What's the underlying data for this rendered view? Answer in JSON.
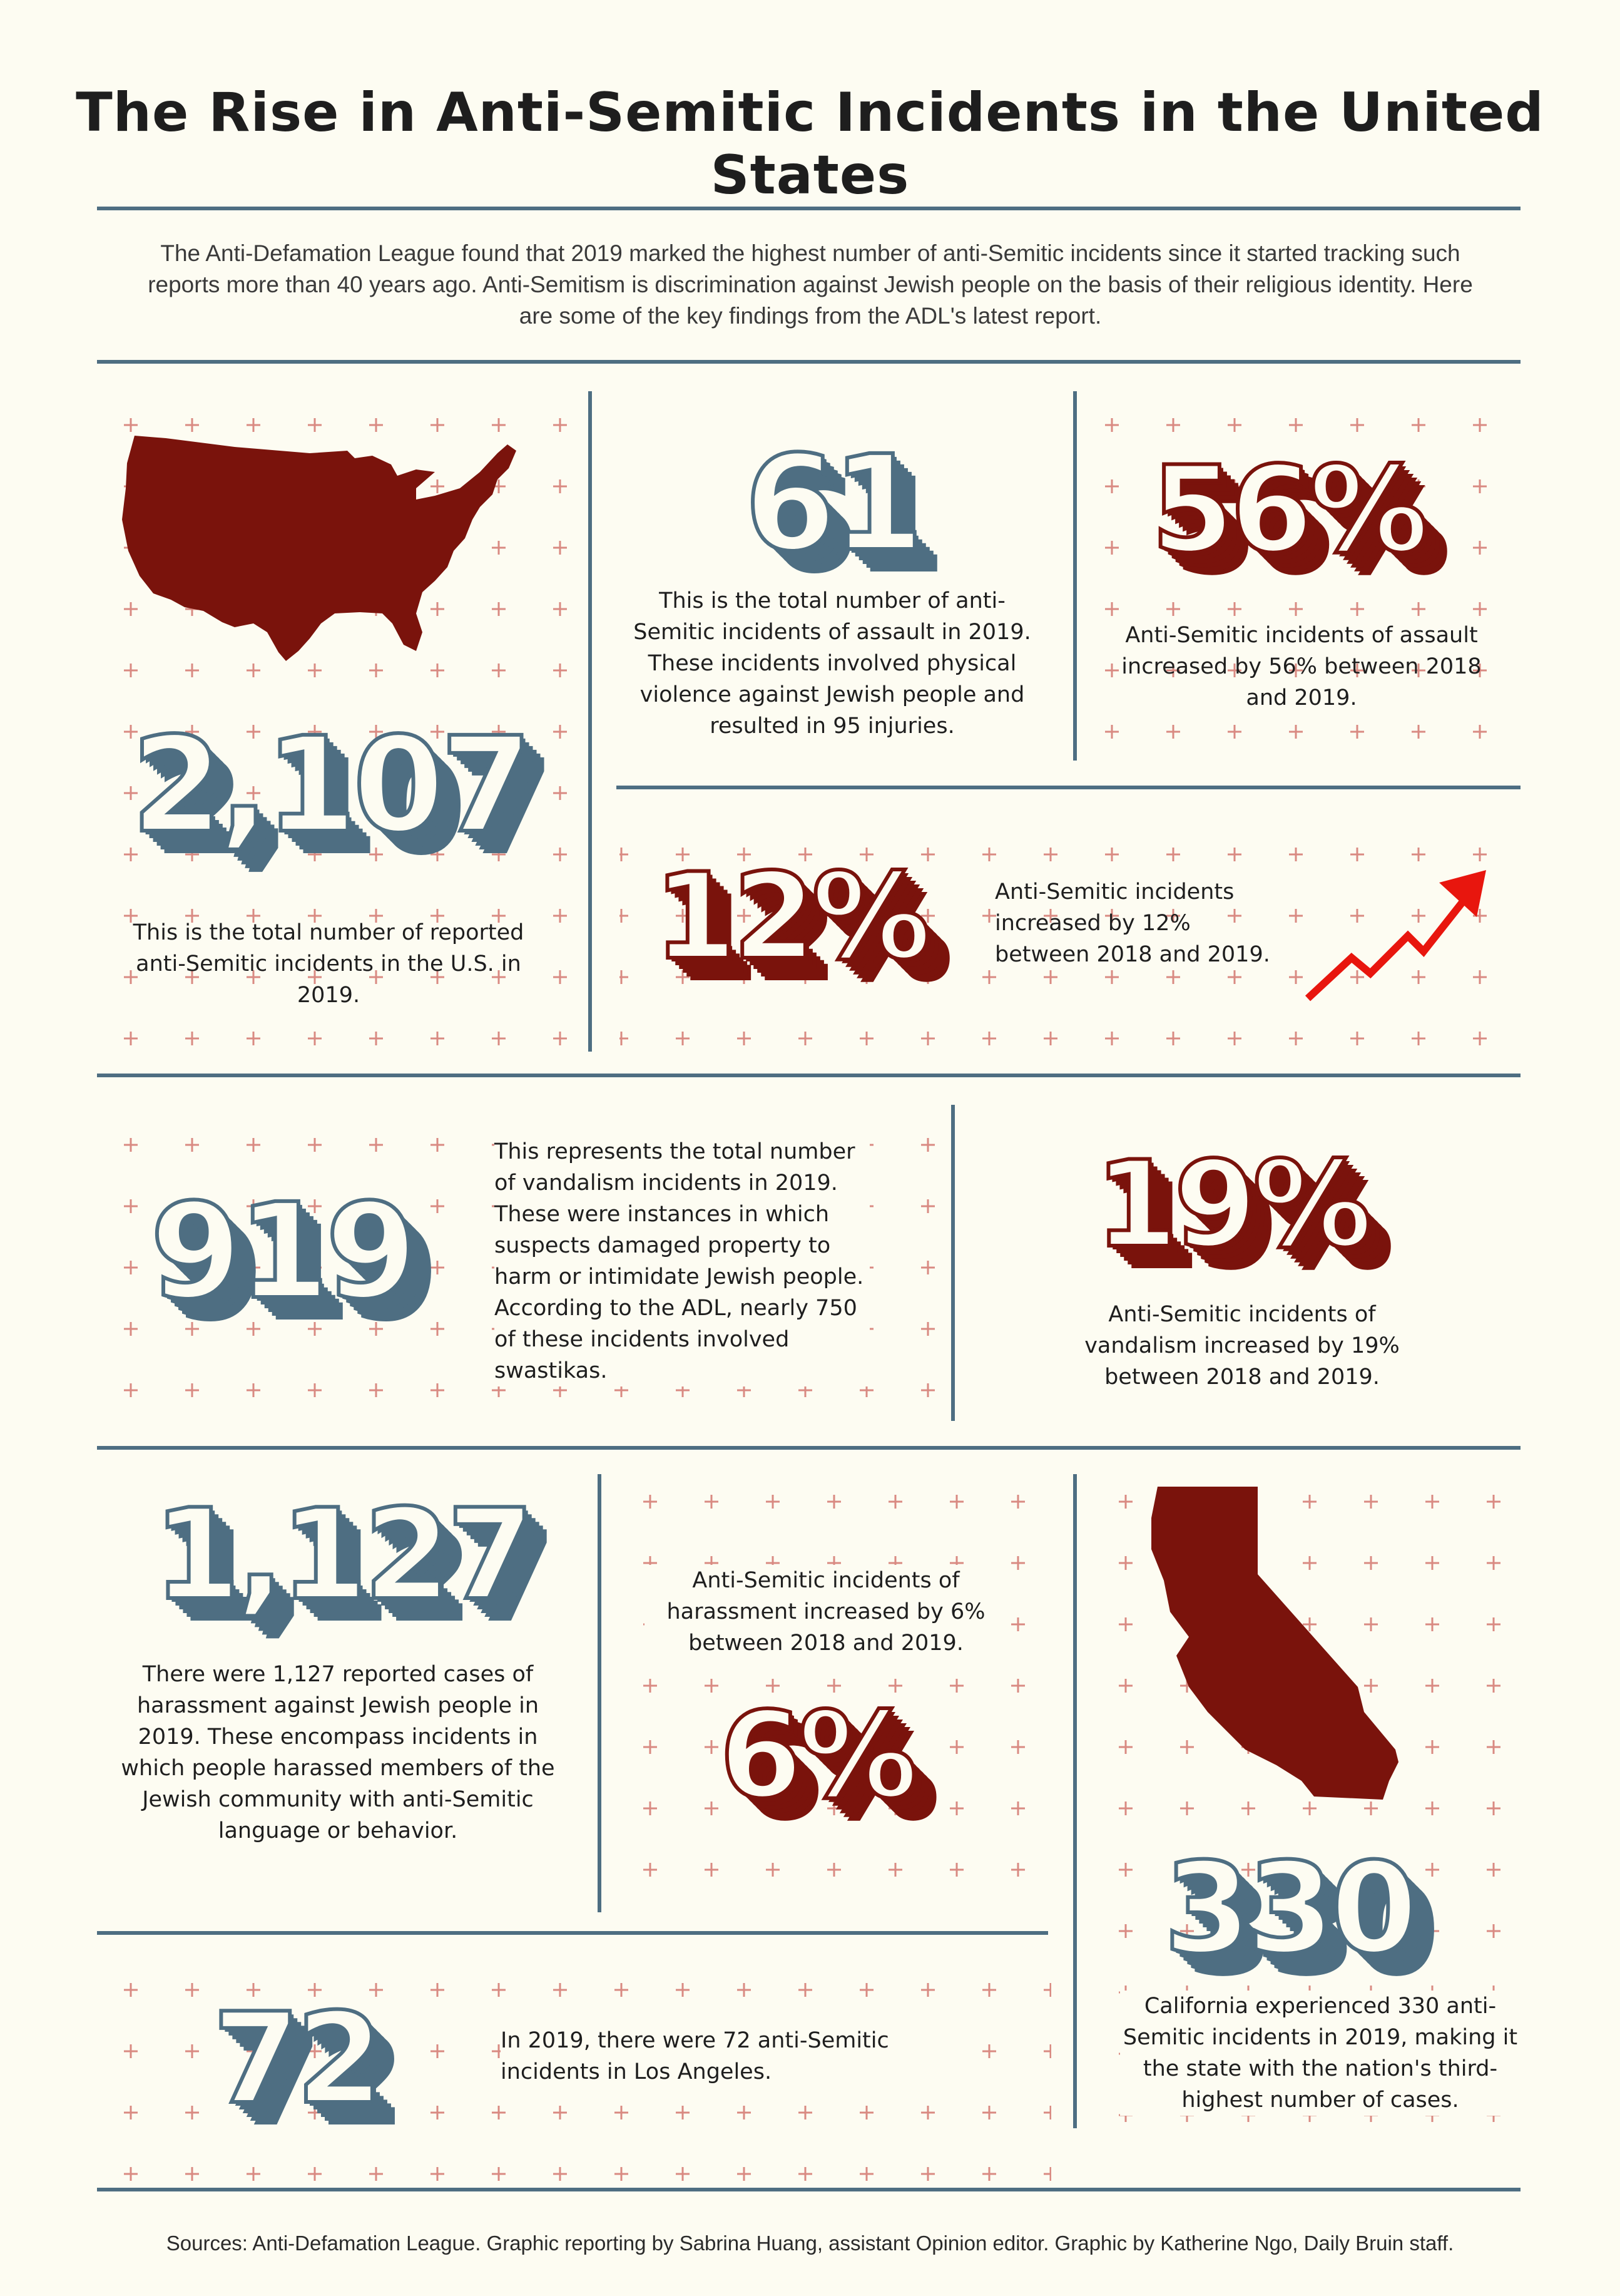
{
  "title": "The Rise in Anti-Semitic Incidents in the United States",
  "intro": "The Anti-Defamation League found that 2019 marked the highest number of anti-Semitic incidents since it started tracking such reports more than 40 years ago. Anti-Semitism is discrimination against Jewish people on the basis of their religious identity. Here are some of the key findings from the ADL's latest report.",
  "stats": {
    "total": {
      "value": "2,107",
      "text": "This is the total number of reported anti-Semitic incidents in the U.S. in 2019."
    },
    "assault": {
      "value": "61",
      "text": "This is the total number of anti-Semitic incidents of assault in 2019. These incidents involved physical violence against Jewish people and resulted in 95 injuries."
    },
    "assault_change": {
      "value": "56%",
      "text": "Anti-Semitic incidents of assault increased by 56% between 2018 and 2019."
    },
    "total_change": {
      "value": "12%",
      "text": "Anti-Semitic incidents increased by 12% between 2018 and 2019."
    },
    "vandalism": {
      "value": "919",
      "text": "This represents the total number of vandalism incidents in 2019. These were instances in which suspects damaged property to harm or intimidate Jewish people. According to the ADL, nearly 750 of these incidents involved swastikas."
    },
    "vandalism_change": {
      "value": "19%",
      "text": "Anti-Semitic incidents of vandalism increased by 19% between 2018 and 2019."
    },
    "harassment": {
      "value": "1,127",
      "text": "There were 1,127 reported cases of harassment against Jewish people in 2019. These encompass incidents in which people harassed members of the Jewish community with anti-Semitic language or behavior."
    },
    "harassment_change": {
      "value": "6%",
      "text": "Anti-Semitic incidents of harassment increased by 6% between 2018 and 2019."
    },
    "california": {
      "value": "330",
      "text": "California experienced 330 anti-Semitic incidents in 2019, making it the state with the nation's third-highest number of cases."
    },
    "los_angeles": {
      "value": "72",
      "text": "In 2019, there were 72 anti-Semitic incidents in Los Angeles."
    }
  },
  "icons": [
    "us-map-icon",
    "california-map-icon",
    "trend-up-arrow-icon"
  ],
  "colors": {
    "background": "#fdfcf2",
    "blue": "#4e6e82",
    "red": "#7a130c",
    "arrow": "#e8160e",
    "cross": "#d98a82"
  },
  "sources": "Sources: Anti-Defamation League. Graphic reporting by Sabrina Huang, assistant Opinion editor. Graphic by Katherine Ngo, Daily Bruin staff."
}
